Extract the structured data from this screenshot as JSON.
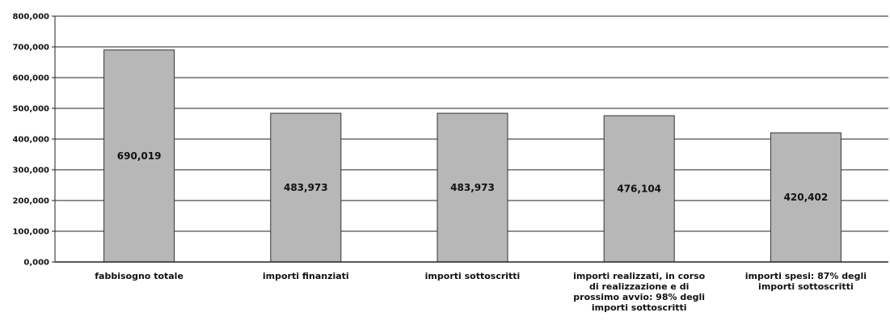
{
  "chart_data": {
    "type": "bar",
    "title": "",
    "xlabel": "",
    "ylabel": "",
    "ylim": [
      0,
      800000
    ],
    "yticks": [
      "0,000",
      "100,000",
      "200,000",
      "300,000",
      "400,000",
      "500,000",
      "600,000",
      "700,000",
      "800,000"
    ],
    "grid": true,
    "categories": [
      "fabbisogno totale",
      "importi finanziati",
      "importi sottoscritti",
      "importi realizzati, in corso di realizzazione e di prossimo avvio: 98% degli importi sottoscritti",
      "importi spesi: 87% degli importi sottoscritti"
    ],
    "category_lines": [
      [
        "fabbisogno totale"
      ],
      [
        "importi finanziati"
      ],
      [
        "importi sottoscritti"
      ],
      [
        "importi realizzati, in corso",
        "di realizzazione e di",
        "prossimo avvio: 98% degli",
        "importi sottoscritti"
      ],
      [
        "importi spesi: 87% degli",
        "importi sottoscritti"
      ]
    ],
    "values": [
      690019,
      483973,
      483973,
      476104,
      420402
    ],
    "data_labels": [
      "690,019",
      "483,973",
      "483,973",
      "476,104",
      "420,402"
    ],
    "bar_color": "#b7b7b7"
  }
}
